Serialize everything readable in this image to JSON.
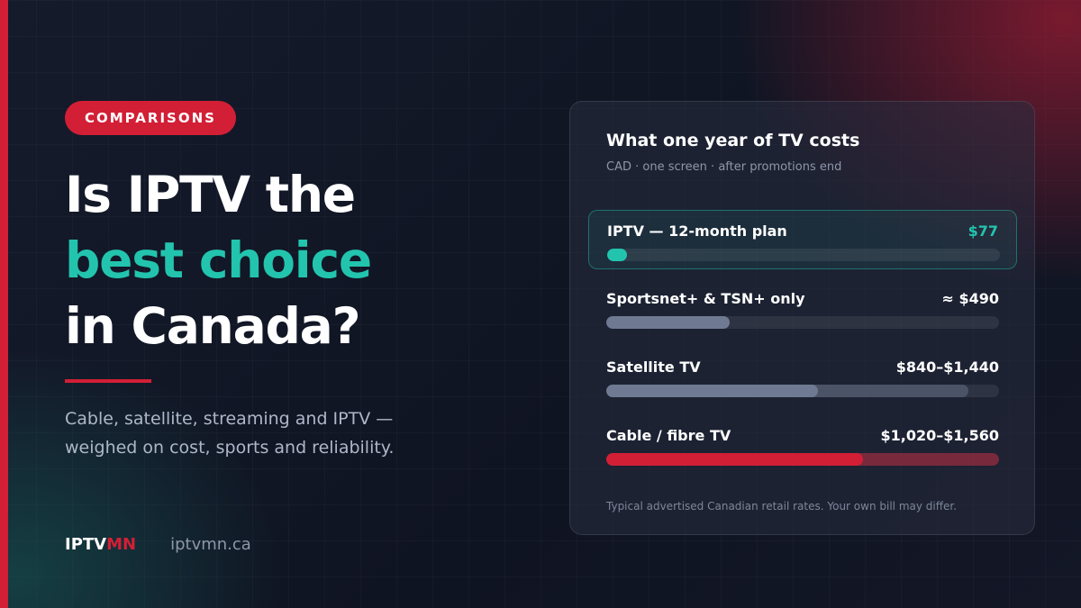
{
  "badge": "COMPARISONS",
  "headline": {
    "line1": "Is IPTV the",
    "line2": "best choice",
    "line3": "in Canada?"
  },
  "subtitle": "Cable, satellite, streaming and IPTV — weighed on cost, sports and reliability.",
  "brand": {
    "name_main": "IPTV",
    "name_accent": "MN",
    "url": "iptvmn.ca"
  },
  "card": {
    "title": "What one year of TV costs",
    "subtitle": "CAD · one screen · after promotions end",
    "note": "Typical advertised Canadian retail rates. Your own bill may differ."
  },
  "colors": {
    "accent_red": "#d21f36",
    "accent_teal": "#23c4ae",
    "bar_gray": "#6f7a92"
  },
  "scale_max": 1560,
  "items": [
    {
      "label": "IPTV — 12-month plan",
      "value_text": "$77",
      "low": 77,
      "high": 77,
      "highlight": true,
      "color": "#23c4ae"
    },
    {
      "label": "Sportsnet+ & TSN+ only",
      "value_text": "≈ $490",
      "low": 490,
      "high": 490,
      "highlight": false,
      "color": "#6f7a92"
    },
    {
      "label": "Satellite TV",
      "value_text": "$840–$1,440",
      "low": 840,
      "high": 1440,
      "highlight": false,
      "color": "#6f7a92"
    },
    {
      "label": "Cable / fibre TV",
      "value_text": "$1,020–$1,560",
      "low": 1020,
      "high": 1560,
      "highlight": false,
      "color": "#d21f36"
    }
  ]
}
